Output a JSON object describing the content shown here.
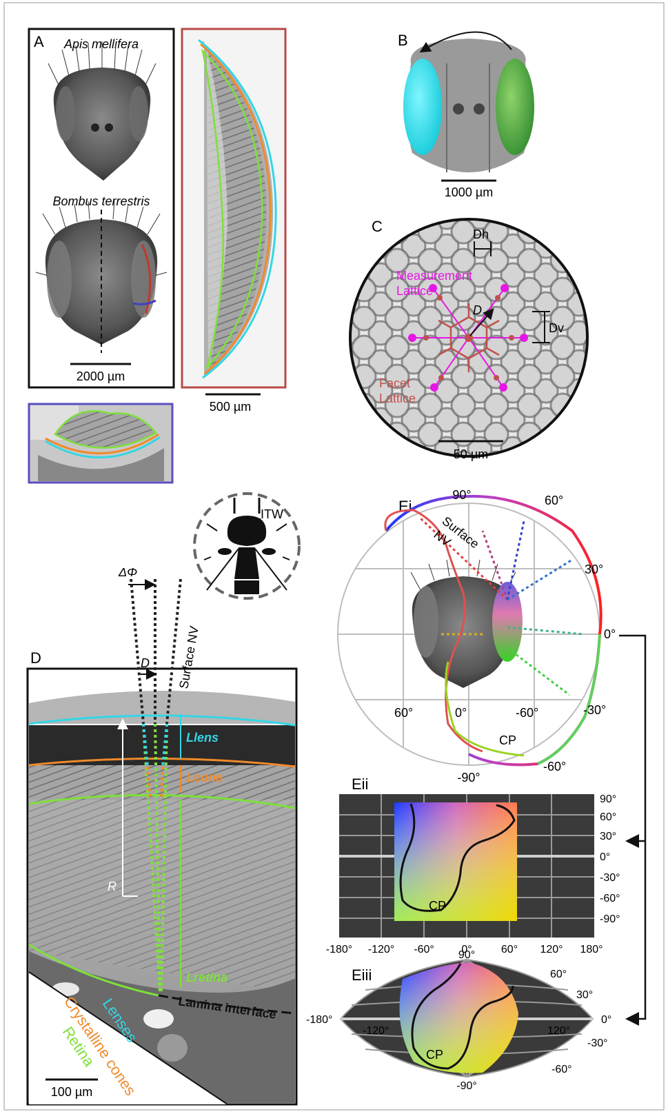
{
  "panelA": {
    "label": "A",
    "species1": "Apis mellifera",
    "species2": "Bombus terrestris",
    "scale_main": "2000 µm",
    "scale_section": "500 µm"
  },
  "panelB": {
    "label": "B",
    "scale": "1000 µm"
  },
  "panelC": {
    "label": "C",
    "dh": "Dh",
    "dv": "Dv",
    "d": "D",
    "measurement_lattice_line1": "Measurement",
    "measurement_lattice_line2": "Lattice",
    "facet_lattice_line1": "Facet",
    "facet_lattice_line2": "Lattice",
    "scale": "50 µm"
  },
  "panelD": {
    "label": "D",
    "itw": "ITW",
    "delta_phi": "ΔΦ",
    "d": "D",
    "surface_nv": "Surface NV",
    "l_lens": "Llens",
    "l_cone": "Lcone",
    "l_retina": "Lretina",
    "r": "R",
    "lamina_interface": "Lamina interface",
    "legend_lenses": "Lenses",
    "legend_cones": "Crystalline cones",
    "legend_retina": "Retina",
    "scale": "100 µm"
  },
  "panelEi": {
    "label": "Ei",
    "surface": "Surface",
    "nv": "NV",
    "cp": "CP",
    "deg_90": "90°",
    "deg_60": "60°",
    "deg_30": "30°",
    "deg_0": "0°",
    "deg_m30": "-30°",
    "deg_m60": "-60°",
    "deg_m90": "-90°",
    "deg_60_left": "60°",
    "deg_0_mid": "0°",
    "deg_m60_mid": "-60°"
  },
  "panelEii": {
    "label": "Eii",
    "cp": "CP",
    "y_ticks": [
      "90°",
      "60°",
      "30°",
      "0°",
      "-30°",
      "-60°",
      "-90°"
    ],
    "x_ticks": [
      "-180°",
      "-120°",
      "-60°",
      "0°",
      "60°",
      "120°",
      "180°"
    ]
  },
  "panelEiii": {
    "label": "Eiii",
    "cp": "CP",
    "top": "90°",
    "bottom": "-90°",
    "left_180": "-180°",
    "left_120": "-120°",
    "right_120": "120°",
    "right_60": "60°",
    "right_30": "30°",
    "right_0": "0°",
    "right_m30": "-30°",
    "right_m60": "-60°"
  },
  "colors": {
    "lens": "#33d6e6",
    "cone": "#f08a2a",
    "retina": "#7ee03a",
    "measurement": "#e617e6",
    "facet": "#c0504d",
    "section_border_red": "#b94a48",
    "section_border_blue": "#5b4fc0"
  }
}
